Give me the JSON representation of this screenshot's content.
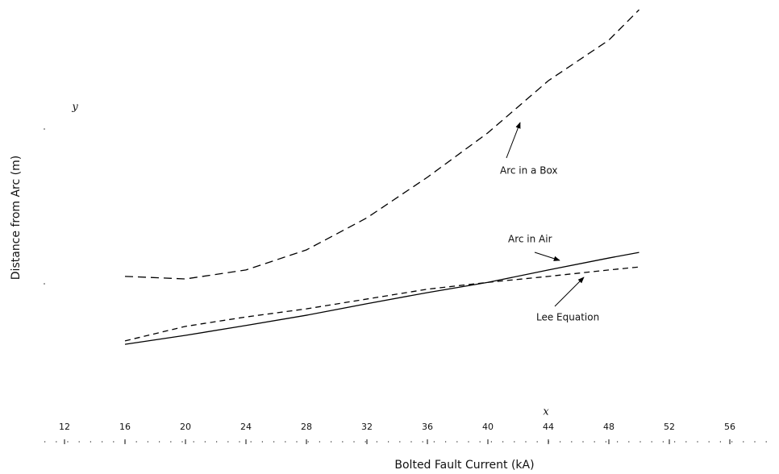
{
  "chart_data": {
    "type": "line",
    "x_label": "Bolted Fault Current (kA)",
    "y_label": "Distance from Arc (m)",
    "x_axis_letter": "x",
    "y_axis_letter": "y",
    "xlim": [
      12,
      56
    ],
    "xticks": [
      12,
      16,
      20,
      24,
      28,
      32,
      36,
      40,
      44,
      48,
      52,
      56
    ],
    "ylim": [
      0,
      10
    ],
    "x": [
      16,
      20,
      24,
      28,
      32,
      36,
      40,
      44,
      48,
      50
    ],
    "series": [
      {
        "name": "Arc in a Box",
        "color": "#000000",
        "style": "dashed",
        "values": [
          3.72,
          3.66,
          3.87,
          4.34,
          5.09,
          6.04,
          7.08,
          8.3,
          9.25,
          9.96
        ]
      },
      {
        "name": "Arc in Air",
        "color": "#000000",
        "style": "solid",
        "values": [
          2.13,
          2.34,
          2.57,
          2.81,
          3.08,
          3.34,
          3.58,
          3.87,
          4.15,
          4.28
        ]
      },
      {
        "name": "Lee Equation",
        "color": "#000000",
        "style": "dashed",
        "values": [
          2.21,
          2.55,
          2.77,
          2.96,
          3.19,
          3.42,
          3.58,
          3.72,
          3.87,
          3.94
        ]
      }
    ]
  }
}
